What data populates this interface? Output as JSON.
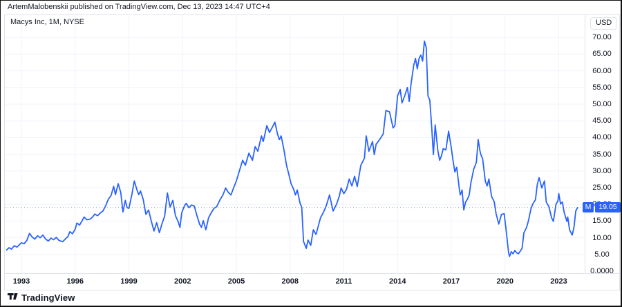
{
  "attribution": "ArtemMalobenskii published on TradingView.com, Dec 13, 2023 14:47 UTC+4",
  "header": {
    "symbol_title": "Macys Inc, 1M, NYSE"
  },
  "price_axis": {
    "currency_button": "USD",
    "labels": [
      "70.00",
      "65.00",
      "60.00",
      "55.00",
      "50.00",
      "45.00",
      "40.00",
      "35.00",
      "30.00",
      "25.00",
      "20.00",
      "15.00",
      "10.00",
      "5.00",
      "0.0000"
    ],
    "last_price_badge": {
      "symbol": "M",
      "price": "19.05"
    }
  },
  "time_axis": {
    "labels": [
      "1993",
      "1996",
      "1999",
      "2002",
      "2005",
      "2008",
      "2011",
      "2014",
      "2017",
      "2020",
      "2023"
    ]
  },
  "footer": {
    "brand": "TradingView"
  },
  "colors": {
    "series_line": "#2962ff",
    "badge_background": "#2962ff",
    "grid": "#f0f3fa",
    "last_price_line": "#8a9ab0",
    "axis_text": "#131722"
  },
  "chart_data": {
    "type": "line",
    "title": "Macys Inc, 1M, NYSE",
    "symbol": "M",
    "exchange": "NYSE",
    "interval": "1M",
    "currency": "USD",
    "last_price": 19.05,
    "xlim": [
      1992.1,
      2024.4
    ],
    "ylim": [
      0,
      72
    ],
    "x_ticks": [
      1993,
      1996,
      1999,
      2002,
      2005,
      2008,
      2011,
      2014,
      2017,
      2020,
      2023
    ],
    "y_ticks": [
      0,
      5,
      10,
      15,
      20,
      25,
      30,
      35,
      40,
      45,
      50,
      55,
      60,
      65,
      70
    ],
    "legend_position": "none",
    "grid": true,
    "points": [
      [
        1992.17,
        6.3
      ],
      [
        1992.3,
        7.0
      ],
      [
        1992.45,
        6.6
      ],
      [
        1992.6,
        7.6
      ],
      [
        1992.75,
        7.2
      ],
      [
        1992.9,
        8.0
      ],
      [
        1993.0,
        8.5
      ],
      [
        1993.15,
        8.2
      ],
      [
        1993.3,
        9.2
      ],
      [
        1993.45,
        11.3
      ],
      [
        1993.6,
        10.2
      ],
      [
        1993.75,
        9.6
      ],
      [
        1993.9,
        10.6
      ],
      [
        1994.05,
        10.0
      ],
      [
        1994.2,
        10.8
      ],
      [
        1994.35,
        9.6
      ],
      [
        1994.5,
        9.0
      ],
      [
        1994.65,
        9.9
      ],
      [
        1994.8,
        9.4
      ],
      [
        1994.95,
        10.1
      ],
      [
        1995.1,
        9.2
      ],
      [
        1995.3,
        8.8
      ],
      [
        1995.45,
        9.6
      ],
      [
        1995.6,
        10.4
      ],
      [
        1995.7,
        11.8
      ],
      [
        1995.85,
        11.2
      ],
      [
        1996.0,
        12.6
      ],
      [
        1996.1,
        14.4
      ],
      [
        1996.25,
        13.8
      ],
      [
        1996.4,
        15.2
      ],
      [
        1996.5,
        16.2
      ],
      [
        1996.65,
        15.4
      ],
      [
        1996.85,
        15.6
      ],
      [
        1997.0,
        16.4
      ],
      [
        1997.1,
        17.1
      ],
      [
        1997.25,
        16.6
      ],
      [
        1997.4,
        17.4
      ],
      [
        1997.55,
        18.0
      ],
      [
        1997.7,
        19.5
      ],
      [
        1997.85,
        21.5
      ],
      [
        1998.0,
        22.6
      ],
      [
        1998.15,
        25.4
      ],
      [
        1998.25,
        22.9
      ],
      [
        1998.4,
        26.2
      ],
      [
        1998.55,
        23.5
      ],
      [
        1998.67,
        17.7
      ],
      [
        1998.8,
        21.2
      ],
      [
        1998.9,
        19.0
      ],
      [
        1999.0,
        18.8
      ],
      [
        1999.15,
        22.5
      ],
      [
        1999.3,
        27.0
      ],
      [
        1999.45,
        24.3
      ],
      [
        1999.55,
        22.9
      ],
      [
        1999.65,
        24.0
      ],
      [
        1999.8,
        21.5
      ],
      [
        1999.95,
        17.0
      ],
      [
        2000.1,
        18.3
      ],
      [
        2000.25,
        15.0
      ],
      [
        2000.4,
        12.0
      ],
      [
        2000.55,
        14.5
      ],
      [
        2000.7,
        11.5
      ],
      [
        2000.85,
        14.2
      ],
      [
        2001.0,
        16.5
      ],
      [
        2001.15,
        23.4
      ],
      [
        2001.3,
        19.2
      ],
      [
        2001.45,
        21.2
      ],
      [
        2001.6,
        16.6
      ],
      [
        2001.75,
        14.8
      ],
      [
        2001.85,
        13.1
      ],
      [
        2001.95,
        17.5
      ],
      [
        2002.1,
        19.5
      ],
      [
        2002.2,
        20.3
      ],
      [
        2002.35,
        19.0
      ],
      [
        2002.5,
        19.8
      ],
      [
        2002.65,
        19.5
      ],
      [
        2002.8,
        16.6
      ],
      [
        2002.95,
        14.0
      ],
      [
        2003.05,
        13.1
      ],
      [
        2003.15,
        15.1
      ],
      [
        2003.3,
        12.4
      ],
      [
        2003.45,
        16.0
      ],
      [
        2003.6,
        17.5
      ],
      [
        2003.75,
        18.8
      ],
      [
        2003.9,
        19.3
      ],
      [
        2004.1,
        21.5
      ],
      [
        2004.25,
        22.8
      ],
      [
        2004.4,
        24.9
      ],
      [
        2004.55,
        23.6
      ],
      [
        2004.7,
        22.8
      ],
      [
        2004.85,
        25.0
      ],
      [
        2005.0,
        27.0
      ],
      [
        2005.15,
        29.7
      ],
      [
        2005.35,
        33.2
      ],
      [
        2005.5,
        31.7
      ],
      [
        2005.7,
        35.3
      ],
      [
        2005.9,
        33.2
      ],
      [
        2006.05,
        37.3
      ],
      [
        2006.2,
        35.9
      ],
      [
        2006.4,
        40.5
      ],
      [
        2006.5,
        38.8
      ],
      [
        2006.7,
        43.6
      ],
      [
        2006.85,
        41.5
      ],
      [
        2007.0,
        43.0
      ],
      [
        2007.15,
        44.6
      ],
      [
        2007.3,
        41.0
      ],
      [
        2007.4,
        39.4
      ],
      [
        2007.5,
        40.5
      ],
      [
        2007.65,
        36.5
      ],
      [
        2007.8,
        31.7
      ],
      [
        2007.95,
        28.5
      ],
      [
        2008.05,
        26.3
      ],
      [
        2008.2,
        24.5
      ],
      [
        2008.3,
        22.8
      ],
      [
        2008.4,
        24.3
      ],
      [
        2008.55,
        20.5
      ],
      [
        2008.65,
        19.1
      ],
      [
        2008.75,
        8.9
      ],
      [
        2008.9,
        6.8
      ],
      [
        2009.0,
        9.3
      ],
      [
        2009.15,
        7.7
      ],
      [
        2009.3,
        12.4
      ],
      [
        2009.45,
        11.0
      ],
      [
        2009.6,
        14.0
      ],
      [
        2009.7,
        16.0
      ],
      [
        2009.85,
        17.5
      ],
      [
        2010.0,
        19.3
      ],
      [
        2010.2,
        22.8
      ],
      [
        2010.4,
        18.0
      ],
      [
        2010.6,
        20.1
      ],
      [
        2010.75,
        22.5
      ],
      [
        2010.85,
        24.9
      ],
      [
        2011.0,
        23.2
      ],
      [
        2011.15,
        24.5
      ],
      [
        2011.3,
        27.6
      ],
      [
        2011.45,
        25.5
      ],
      [
        2011.6,
        28.4
      ],
      [
        2011.75,
        25.3
      ],
      [
        2011.95,
        31.7
      ],
      [
        2012.15,
        33.8
      ],
      [
        2012.25,
        40.5
      ],
      [
        2012.4,
        35.9
      ],
      [
        2012.6,
        38.8
      ],
      [
        2012.7,
        34.9
      ],
      [
        2012.8,
        38.0
      ],
      [
        2013.0,
        39.4
      ],
      [
        2013.2,
        41.1
      ],
      [
        2013.35,
        48.1
      ],
      [
        2013.55,
        47.7
      ],
      [
        2013.75,
        42.9
      ],
      [
        2013.85,
        43.6
      ],
      [
        2014.0,
        52.5
      ],
      [
        2014.15,
        54.4
      ],
      [
        2014.25,
        50.4
      ],
      [
        2014.4,
        52.5
      ],
      [
        2014.55,
        55.0
      ],
      [
        2014.65,
        50.8
      ],
      [
        2014.75,
        56.0
      ],
      [
        2014.9,
        61.6
      ],
      [
        2015.0,
        63.7
      ],
      [
        2015.1,
        60.6
      ],
      [
        2015.2,
        63.7
      ],
      [
        2015.3,
        64.7
      ],
      [
        2015.4,
        62.9
      ],
      [
        2015.5,
        68.9
      ],
      [
        2015.6,
        67.0
      ],
      [
        2015.7,
        52.5
      ],
      [
        2015.8,
        51.2
      ],
      [
        2015.9,
        43.6
      ],
      [
        2016.0,
        34.9
      ],
      [
        2016.1,
        43.8
      ],
      [
        2016.25,
        36.0
      ],
      [
        2016.35,
        33.2
      ],
      [
        2016.45,
        34.5
      ],
      [
        2016.55,
        36.7
      ],
      [
        2016.7,
        36.3
      ],
      [
        2016.85,
        41.9
      ],
      [
        2017.0,
        36.9
      ],
      [
        2017.1,
        33.0
      ],
      [
        2017.2,
        29.7
      ],
      [
        2017.3,
        31.1
      ],
      [
        2017.45,
        24.5
      ],
      [
        2017.5,
        22.8
      ],
      [
        2017.6,
        24.3
      ],
      [
        2017.7,
        18.3
      ],
      [
        2017.8,
        20.7
      ],
      [
        2017.9,
        21.5
      ],
      [
        2018.0,
        22.8
      ],
      [
        2018.1,
        26.6
      ],
      [
        2018.25,
        30.5
      ],
      [
        2018.4,
        32.6
      ],
      [
        2018.5,
        39.4
      ],
      [
        2018.6,
        36.0
      ],
      [
        2018.65,
        34.9
      ],
      [
        2018.75,
        33.6
      ],
      [
        2018.9,
        27.0
      ],
      [
        2019.0,
        25.5
      ],
      [
        2019.1,
        27.6
      ],
      [
        2019.25,
        22.4
      ],
      [
        2019.4,
        20.7
      ],
      [
        2019.5,
        17.2
      ],
      [
        2019.65,
        14.1
      ],
      [
        2019.8,
        17.0
      ],
      [
        2019.95,
        17.2
      ],
      [
        2020.05,
        12.9
      ],
      [
        2020.2,
        5.5
      ],
      [
        2020.25,
        4.4
      ],
      [
        2020.35,
        5.8
      ],
      [
        2020.45,
        5.2
      ],
      [
        2020.55,
        6.2
      ],
      [
        2020.65,
        5.5
      ],
      [
        2020.75,
        5.2
      ],
      [
        2020.85,
        6.0
      ],
      [
        2020.95,
        6.8
      ],
      [
        2021.05,
        11.4
      ],
      [
        2021.2,
        13.1
      ],
      [
        2021.3,
        14.9
      ],
      [
        2021.45,
        18.7
      ],
      [
        2021.55,
        20.1
      ],
      [
        2021.7,
        21.4
      ],
      [
        2021.8,
        25.9
      ],
      [
        2021.9,
        28.0
      ],
      [
        2022.0,
        26.0
      ],
      [
        2022.05,
        24.9
      ],
      [
        2022.2,
        27.0
      ],
      [
        2022.3,
        20.7
      ],
      [
        2022.45,
        19.3
      ],
      [
        2022.6,
        16.0
      ],
      [
        2022.7,
        14.9
      ],
      [
        2022.85,
        20.1
      ],
      [
        2022.95,
        21.0
      ],
      [
        2023.0,
        23.2
      ],
      [
        2023.1,
        20.1
      ],
      [
        2023.2,
        20.7
      ],
      [
        2023.3,
        17.6
      ],
      [
        2023.45,
        14.9
      ],
      [
        2023.5,
        16.2
      ],
      [
        2023.6,
        12.4
      ],
      [
        2023.75,
        10.8
      ],
      [
        2023.85,
        13.1
      ],
      [
        2023.95,
        18.0
      ],
      [
        2024.05,
        19.05
      ]
    ]
  }
}
